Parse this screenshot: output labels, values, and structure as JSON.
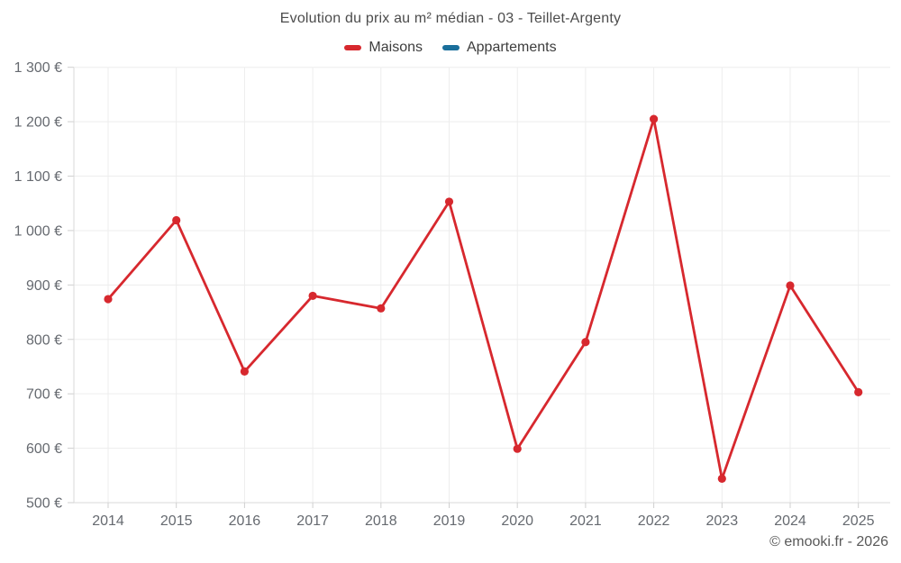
{
  "header": {
    "title": "Evolution du prix au m² médian - 03 - Teillet-Argenty"
  },
  "legend": {
    "items": [
      {
        "label": "Maisons",
        "color": "#d7282e"
      },
      {
        "label": "Appartements",
        "color": "#1a6f9b"
      }
    ]
  },
  "footer": {
    "credit": "© emooki.fr - 2026"
  },
  "chart_data": {
    "type": "line",
    "title": "Evolution du prix au m² médian - 03 - Teillet-Argenty",
    "xlabel": "",
    "ylabel": "",
    "categories": [
      "2014",
      "2015",
      "2016",
      "2017",
      "2018",
      "2019",
      "2020",
      "2021",
      "2022",
      "2023",
      "2024",
      "2025"
    ],
    "series": [
      {
        "name": "Maisons",
        "color": "#d7282e",
        "values": [
          874,
          1019,
          741,
          880,
          857,
          1053,
          599,
          795,
          1205,
          544,
          899,
          703
        ]
      },
      {
        "name": "Appartements",
        "color": "#1a6f9b",
        "values": []
      }
    ],
    "ylim": [
      500,
      1300
    ],
    "ytick_step": 100,
    "ytick_suffix": " €",
    "grid": true,
    "legend_position": "top",
    "marker": "circle"
  }
}
